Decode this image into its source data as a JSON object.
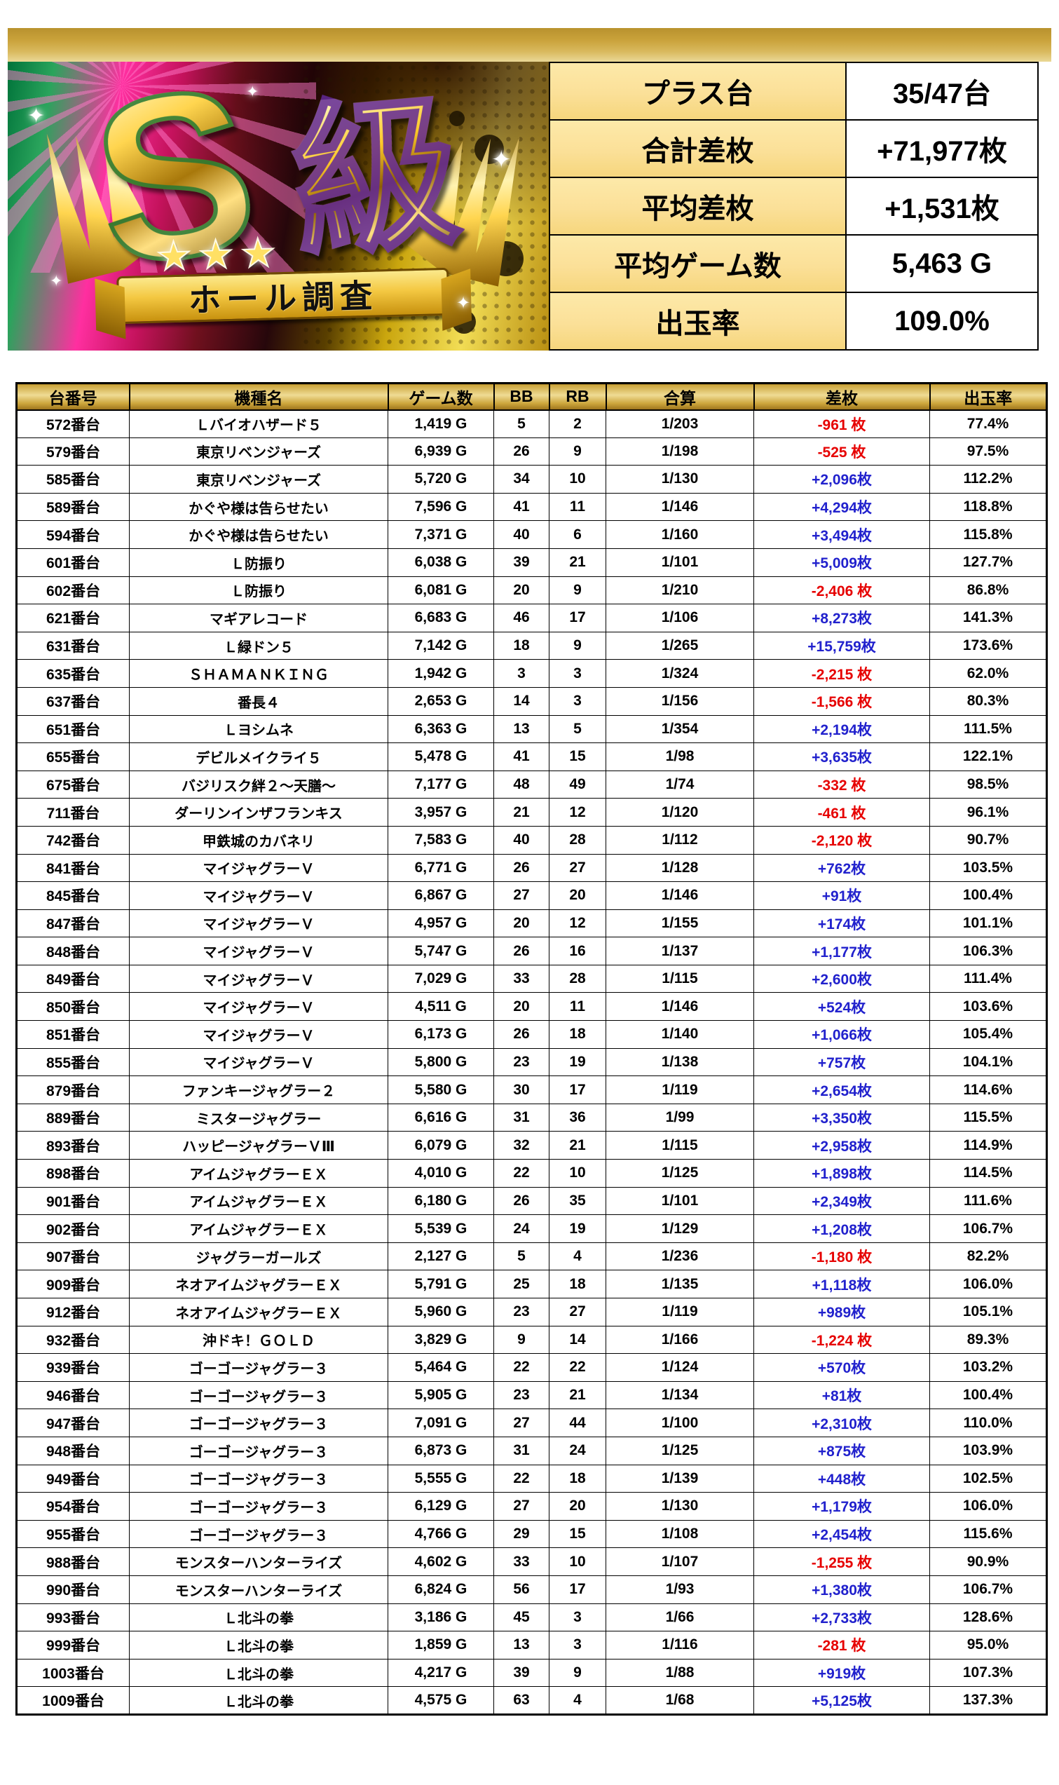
{
  "colors": {
    "positive_diff": "#2121cd",
    "negative_diff": "#e60000",
    "gold_bar_top": "#b8922e",
    "gold_bar_bottom": "#ead896",
    "summary_label_bg": "#fbe098",
    "header_gold_mid": "#efdb94"
  },
  "logo": {
    "s_text": "S",
    "kyu_text": "級",
    "stars": "★★★",
    "banner_text": "ホール調査"
  },
  "summary": {
    "rows": [
      {
        "label": "プラス台",
        "value": "35/47台"
      },
      {
        "label": "合計差枚",
        "value": "+71,977枚"
      },
      {
        "label": "平均差枚",
        "value": "+1,531枚"
      },
      {
        "label": "平均ゲーム数",
        "value": "5,463 G"
      },
      {
        "label": "出玉率",
        "value": "109.0%"
      }
    ]
  },
  "table": {
    "columns": [
      "台番号",
      "機種名",
      "ゲーム数",
      "BB",
      "RB",
      "合算",
      "差枚",
      "出玉率"
    ],
    "rows": [
      {
        "no": "572番台",
        "name": "Ｌバイオハザード５",
        "games": "1,419 G",
        "bb": "5",
        "rb": "2",
        "gassan": "1/203",
        "sa": "-961 枚",
        "sa_sign": "neg",
        "rate": "77.4%"
      },
      {
        "no": "579番台",
        "name": "東京リベンジャーズ",
        "games": "6,939 G",
        "bb": "26",
        "rb": "9",
        "gassan": "1/198",
        "sa": "-525 枚",
        "sa_sign": "neg",
        "rate": "97.5%"
      },
      {
        "no": "585番台",
        "name": "東京リベンジャーズ",
        "games": "5,720 G",
        "bb": "34",
        "rb": "10",
        "gassan": "1/130",
        "sa": "+2,096枚",
        "sa_sign": "pos",
        "rate": "112.2%"
      },
      {
        "no": "589番台",
        "name": "かぐや様は告らせたい",
        "games": "7,596 G",
        "bb": "41",
        "rb": "11",
        "gassan": "1/146",
        "sa": "+4,294枚",
        "sa_sign": "pos",
        "rate": "118.8%"
      },
      {
        "no": "594番台",
        "name": "かぐや様は告らせたい",
        "games": "7,371 G",
        "bb": "40",
        "rb": "6",
        "gassan": "1/160",
        "sa": "+3,494枚",
        "sa_sign": "pos",
        "rate": "115.8%"
      },
      {
        "no": "601番台",
        "name": "Ｌ防振り",
        "games": "6,038 G",
        "bb": "39",
        "rb": "21",
        "gassan": "1/101",
        "sa": "+5,009枚",
        "sa_sign": "pos",
        "rate": "127.7%"
      },
      {
        "no": "602番台",
        "name": "Ｌ防振り",
        "games": "6,081 G",
        "bb": "20",
        "rb": "9",
        "gassan": "1/210",
        "sa": "-2,406 枚",
        "sa_sign": "neg",
        "rate": "86.8%"
      },
      {
        "no": "621番台",
        "name": "マギアレコード",
        "games": "6,683 G",
        "bb": "46",
        "rb": "17",
        "gassan": "1/106",
        "sa": "+8,273枚",
        "sa_sign": "pos",
        "rate": "141.3%"
      },
      {
        "no": "631番台",
        "name": "Ｌ緑ドン５",
        "games": "7,142 G",
        "bb": "18",
        "rb": "9",
        "gassan": "1/265",
        "sa": "+15,759枚",
        "sa_sign": "pos",
        "rate": "173.6%"
      },
      {
        "no": "635番台",
        "name": "ＳＨＡＭＡＮＫＩＮＧ",
        "games": "1,942 G",
        "bb": "3",
        "rb": "3",
        "gassan": "1/324",
        "sa": "-2,215 枚",
        "sa_sign": "neg",
        "rate": "62.0%"
      },
      {
        "no": "637番台",
        "name": "番長４",
        "games": "2,653 G",
        "bb": "14",
        "rb": "3",
        "gassan": "1/156",
        "sa": "-1,566 枚",
        "sa_sign": "neg",
        "rate": "80.3%"
      },
      {
        "no": "651番台",
        "name": "Ｌヨシムネ",
        "games": "6,363 G",
        "bb": "13",
        "rb": "5",
        "gassan": "1/354",
        "sa": "+2,194枚",
        "sa_sign": "pos",
        "rate": "111.5%"
      },
      {
        "no": "655番台",
        "name": "デビルメイクライ５",
        "games": "5,478 G",
        "bb": "41",
        "rb": "15",
        "gassan": "1/98",
        "sa": "+3,635枚",
        "sa_sign": "pos",
        "rate": "122.1%"
      },
      {
        "no": "675番台",
        "name": "バジリスク絆２～天膳～",
        "games": "7,177 G",
        "bb": "48",
        "rb": "49",
        "gassan": "1/74",
        "sa": "-332 枚",
        "sa_sign": "neg",
        "rate": "98.5%"
      },
      {
        "no": "711番台",
        "name": "ダーリンインザフランキス",
        "games": "3,957 G",
        "bb": "21",
        "rb": "12",
        "gassan": "1/120",
        "sa": "-461 枚",
        "sa_sign": "neg",
        "rate": "96.1%"
      },
      {
        "no": "742番台",
        "name": "甲鉄城のカバネリ",
        "games": "7,583 G",
        "bb": "40",
        "rb": "28",
        "gassan": "1/112",
        "sa": "-2,120 枚",
        "sa_sign": "neg",
        "rate": "90.7%"
      },
      {
        "no": "841番台",
        "name": "マイジャグラーＶ",
        "games": "6,771 G",
        "bb": "26",
        "rb": "27",
        "gassan": "1/128",
        "sa": "+762枚",
        "sa_sign": "pos",
        "rate": "103.5%"
      },
      {
        "no": "845番台",
        "name": "マイジャグラーＶ",
        "games": "6,867 G",
        "bb": "27",
        "rb": "20",
        "gassan": "1/146",
        "sa": "+91枚",
        "sa_sign": "pos",
        "rate": "100.4%"
      },
      {
        "no": "847番台",
        "name": "マイジャグラーＶ",
        "games": "4,957 G",
        "bb": "20",
        "rb": "12",
        "gassan": "1/155",
        "sa": "+174枚",
        "sa_sign": "pos",
        "rate": "101.1%"
      },
      {
        "no": "848番台",
        "name": "マイジャグラーＶ",
        "games": "5,747 G",
        "bb": "26",
        "rb": "16",
        "gassan": "1/137",
        "sa": "+1,177枚",
        "sa_sign": "pos",
        "rate": "106.3%"
      },
      {
        "no": "849番台",
        "name": "マイジャグラーＶ",
        "games": "7,029 G",
        "bb": "33",
        "rb": "28",
        "gassan": "1/115",
        "sa": "+2,600枚",
        "sa_sign": "pos",
        "rate": "111.4%"
      },
      {
        "no": "850番台",
        "name": "マイジャグラーＶ",
        "games": "4,511 G",
        "bb": "20",
        "rb": "11",
        "gassan": "1/146",
        "sa": "+524枚",
        "sa_sign": "pos",
        "rate": "103.6%"
      },
      {
        "no": "851番台",
        "name": "マイジャグラーＶ",
        "games": "6,173 G",
        "bb": "26",
        "rb": "18",
        "gassan": "1/140",
        "sa": "+1,066枚",
        "sa_sign": "pos",
        "rate": "105.4%"
      },
      {
        "no": "855番台",
        "name": "マイジャグラーＶ",
        "games": "5,800 G",
        "bb": "23",
        "rb": "19",
        "gassan": "1/138",
        "sa": "+757枚",
        "sa_sign": "pos",
        "rate": "104.1%"
      },
      {
        "no": "879番台",
        "name": "ファンキージャグラー２",
        "games": "5,580 G",
        "bb": "30",
        "rb": "17",
        "gassan": "1/119",
        "sa": "+2,654枚",
        "sa_sign": "pos",
        "rate": "114.6%"
      },
      {
        "no": "889番台",
        "name": "ミスタージャグラー",
        "games": "6,616 G",
        "bb": "31",
        "rb": "36",
        "gassan": "1/99",
        "sa": "+3,350枚",
        "sa_sign": "pos",
        "rate": "115.5%"
      },
      {
        "no": "893番台",
        "name": "ハッピージャグラーＶⅢ",
        "games": "6,079 G",
        "bb": "32",
        "rb": "21",
        "gassan": "1/115",
        "sa": "+2,958枚",
        "sa_sign": "pos",
        "rate": "114.9%"
      },
      {
        "no": "898番台",
        "name": "アイムジャグラーＥＸ",
        "games": "4,010 G",
        "bb": "22",
        "rb": "10",
        "gassan": "1/125",
        "sa": "+1,898枚",
        "sa_sign": "pos",
        "rate": "114.5%"
      },
      {
        "no": "901番台",
        "name": "アイムジャグラーＥＸ",
        "games": "6,180 G",
        "bb": "26",
        "rb": "35",
        "gassan": "1/101",
        "sa": "+2,349枚",
        "sa_sign": "pos",
        "rate": "111.6%"
      },
      {
        "no": "902番台",
        "name": "アイムジャグラーＥＸ",
        "games": "5,539 G",
        "bb": "24",
        "rb": "19",
        "gassan": "1/129",
        "sa": "+1,208枚",
        "sa_sign": "pos",
        "rate": "106.7%"
      },
      {
        "no": "907番台",
        "name": "ジャグラーガールズ",
        "games": "2,127 G",
        "bb": "5",
        "rb": "4",
        "gassan": "1/236",
        "sa": "-1,180 枚",
        "sa_sign": "neg",
        "rate": "82.2%"
      },
      {
        "no": "909番台",
        "name": "ネオアイムジャグラーＥＸ",
        "games": "5,791 G",
        "bb": "25",
        "rb": "18",
        "gassan": "1/135",
        "sa": "+1,118枚",
        "sa_sign": "pos",
        "rate": "106.0%"
      },
      {
        "no": "912番台",
        "name": "ネオアイムジャグラーＥＸ",
        "games": "5,960 G",
        "bb": "23",
        "rb": "27",
        "gassan": "1/119",
        "sa": "+989枚",
        "sa_sign": "pos",
        "rate": "105.1%"
      },
      {
        "no": "932番台",
        "name": "沖ドキ！ＧＯＬＤ",
        "games": "3,829 G",
        "bb": "9",
        "rb": "14",
        "gassan": "1/166",
        "sa": "-1,224 枚",
        "sa_sign": "neg",
        "rate": "89.3%"
      },
      {
        "no": "939番台",
        "name": "ゴーゴージャグラー３",
        "games": "5,464 G",
        "bb": "22",
        "rb": "22",
        "gassan": "1/124",
        "sa": "+570枚",
        "sa_sign": "pos",
        "rate": "103.2%"
      },
      {
        "no": "946番台",
        "name": "ゴーゴージャグラー３",
        "games": "5,905 G",
        "bb": "23",
        "rb": "21",
        "gassan": "1/134",
        "sa": "+81枚",
        "sa_sign": "pos",
        "rate": "100.4%"
      },
      {
        "no": "947番台",
        "name": "ゴーゴージャグラー３",
        "games": "7,091 G",
        "bb": "27",
        "rb": "44",
        "gassan": "1/100",
        "sa": "+2,310枚",
        "sa_sign": "pos",
        "rate": "110.0%"
      },
      {
        "no": "948番台",
        "name": "ゴーゴージャグラー３",
        "games": "6,873 G",
        "bb": "31",
        "rb": "24",
        "gassan": "1/125",
        "sa": "+875枚",
        "sa_sign": "pos",
        "rate": "103.9%"
      },
      {
        "no": "949番台",
        "name": "ゴーゴージャグラー３",
        "games": "5,555 G",
        "bb": "22",
        "rb": "18",
        "gassan": "1/139",
        "sa": "+448枚",
        "sa_sign": "pos",
        "rate": "102.5%"
      },
      {
        "no": "954番台",
        "name": "ゴーゴージャグラー３",
        "games": "6,129 G",
        "bb": "27",
        "rb": "20",
        "gassan": "1/130",
        "sa": "+1,179枚",
        "sa_sign": "pos",
        "rate": "106.0%"
      },
      {
        "no": "955番台",
        "name": "ゴーゴージャグラー３",
        "games": "4,766 G",
        "bb": "29",
        "rb": "15",
        "gassan": "1/108",
        "sa": "+2,454枚",
        "sa_sign": "pos",
        "rate": "115.6%"
      },
      {
        "no": "988番台",
        "name": "モンスターハンターライズ",
        "games": "4,602 G",
        "bb": "33",
        "rb": "10",
        "gassan": "1/107",
        "sa": "-1,255 枚",
        "sa_sign": "neg",
        "rate": "90.9%"
      },
      {
        "no": "990番台",
        "name": "モンスターハンターライズ",
        "games": "6,824 G",
        "bb": "56",
        "rb": "17",
        "gassan": "1/93",
        "sa": "+1,380枚",
        "sa_sign": "pos",
        "rate": "106.7%"
      },
      {
        "no": "993番台",
        "name": "Ｌ北斗の拳",
        "games": "3,186 G",
        "bb": "45",
        "rb": "3",
        "gassan": "1/66",
        "sa": "+2,733枚",
        "sa_sign": "pos",
        "rate": "128.6%"
      },
      {
        "no": "999番台",
        "name": "Ｌ北斗の拳",
        "games": "1,859 G",
        "bb": "13",
        "rb": "3",
        "gassan": "1/116",
        "sa": "-281 枚",
        "sa_sign": "neg",
        "rate": "95.0%"
      },
      {
        "no": "1003番台",
        "name": "Ｌ北斗の拳",
        "games": "4,217 G",
        "bb": "39",
        "rb": "9",
        "gassan": "1/88",
        "sa": "+919枚",
        "sa_sign": "pos",
        "rate": "107.3%"
      },
      {
        "no": "1009番台",
        "name": "Ｌ北斗の拳",
        "games": "4,575 G",
        "bb": "63",
        "rb": "4",
        "gassan": "1/68",
        "sa": "+5,125枚",
        "sa_sign": "pos",
        "rate": "137.3%"
      }
    ]
  }
}
